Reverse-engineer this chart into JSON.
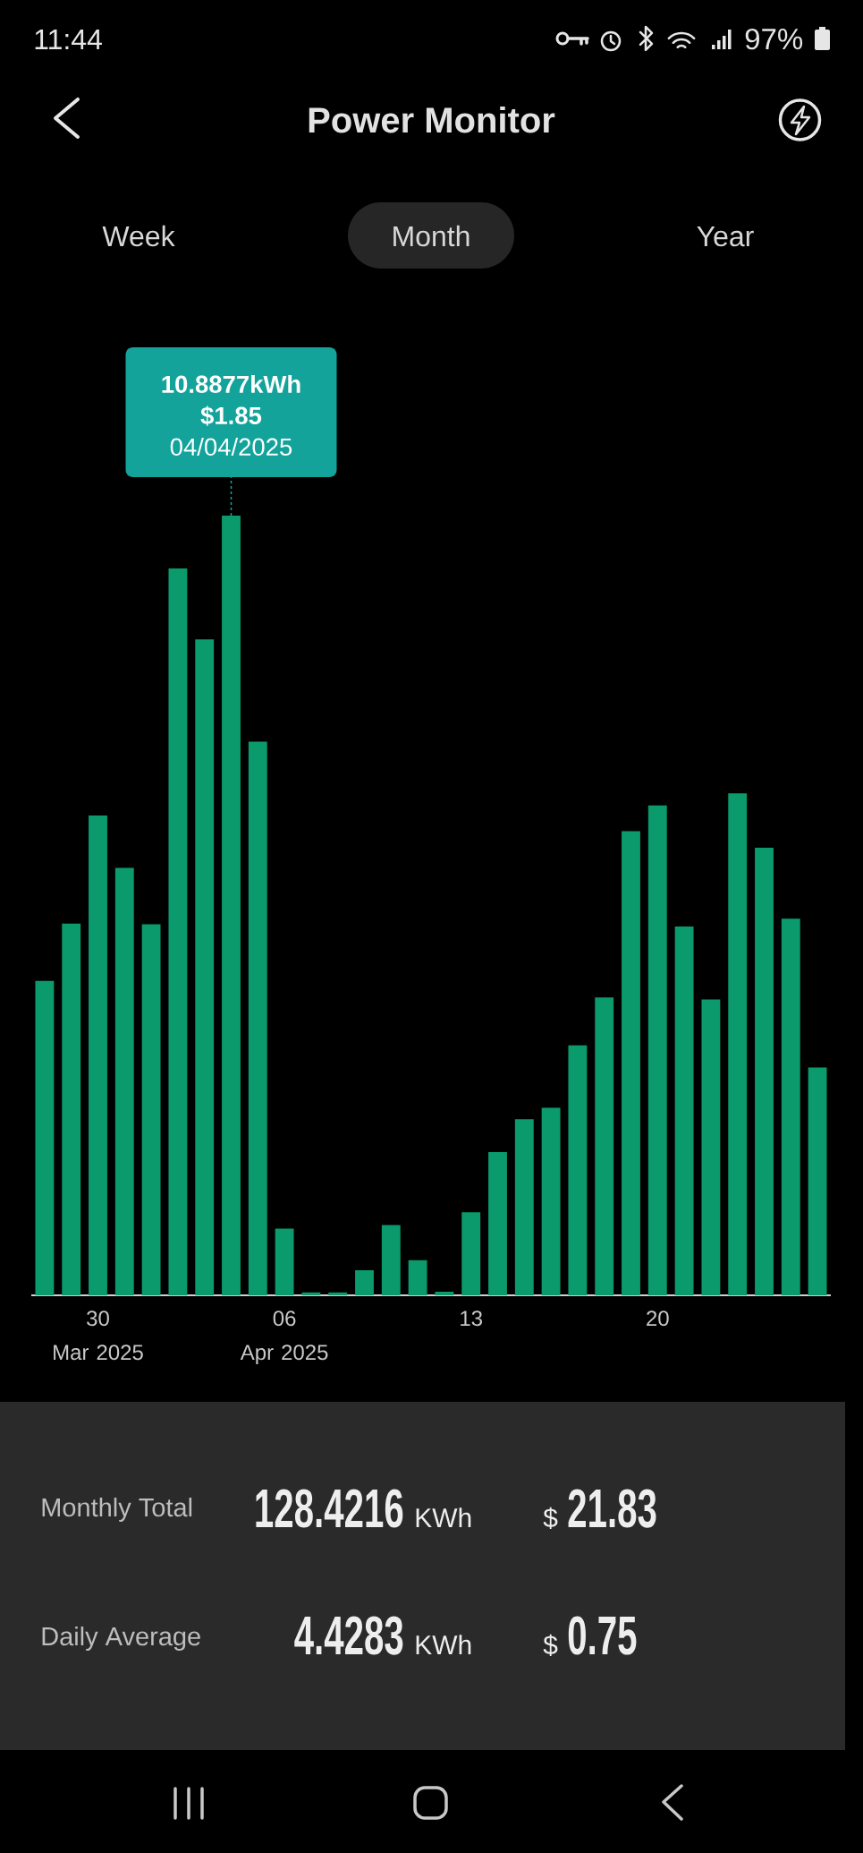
{
  "chart_data": {
    "type": "bar",
    "title": "Power Monitor",
    "categories": [
      null,
      null,
      "30\nMar 2025",
      null,
      null,
      null,
      null,
      null,
      null,
      "06\nApr 2025",
      null,
      null,
      null,
      null,
      null,
      null,
      "13",
      null,
      null,
      null,
      null,
      null,
      null,
      "20",
      null,
      null,
      null,
      null,
      null,
      null
    ],
    "values": [
      4.39,
      5.19,
      6.7,
      5.97,
      5.18,
      10.15,
      9.16,
      10.8877,
      7.73,
      0.93,
      0.04,
      0.04,
      0.35,
      0.98,
      0.49,
      0.05,
      1.16,
      2.0,
      2.46,
      2.62,
      3.49,
      4.16,
      6.48,
      6.84,
      5.15,
      4.13,
      7.01,
      6.25,
      5.26,
      3.18
    ],
    "color": "#0a9a6c",
    "value_labels": [
      null,
      null,
      null,
      null,
      null,
      null,
      null,
      "**10.8877kWh**\n**$1.85**\n04/04/2025",
      null,
      null,
      null,
      null,
      null,
      null,
      null,
      null,
      null,
      null,
      null,
      null,
      null,
      null,
      null,
      null,
      null,
      null,
      null,
      null,
      null,
      null
    ],
    "tick_labels": "x",
    "annotations": [
      "11:44",
      "97%",
      "Week",
      "Month",
      "Year",
      "Monthly Total",
      "128.4216",
      "KWh",
      "$",
      "21.83",
      "Daily Average",
      "4.4283",
      "KWh",
      "$",
      "0.75"
    ]
  }
}
